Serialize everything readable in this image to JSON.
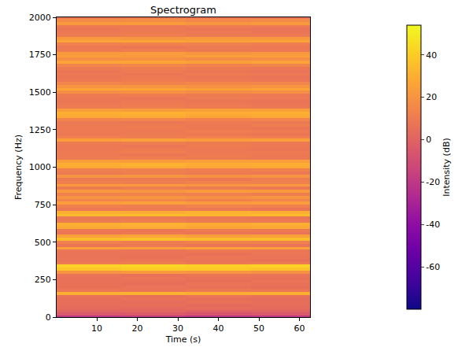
{
  "chart_data": {
    "type": "heatmap",
    "title": "Spectrogram",
    "x_label": "Time (s)",
    "y_label": "Frequency (Hz)",
    "colorbar_label": "Intensity (dB)",
    "color": "plasma",
    "xlim": [
      0.1,
      62.6
    ],
    "xticks": [
      10,
      20,
      30,
      40,
      50,
      60
    ],
    "ylim": [
      0,
      2000
    ],
    "yticks": [
      0,
      250,
      500,
      750,
      1000,
      1250,
      1500,
      1750,
      2000
    ],
    "zlim": [
      -80,
      54
    ],
    "zticks": [
      -60,
      -40,
      -20,
      0,
      20,
      40
    ],
    "x": [
      8,
      24,
      40,
      56
    ],
    "y": [
      0,
      20,
      40,
      60,
      80,
      100,
      120,
      140,
      160,
      180,
      200,
      220,
      240,
      260,
      280,
      300,
      320,
      340,
      360,
      380,
      400,
      420,
      440,
      460,
      480,
      500,
      520,
      540,
      560,
      580,
      600,
      620,
      640,
      660,
      680,
      700,
      720,
      740,
      760,
      780,
      800,
      820,
      840,
      860,
      880,
      900,
      920,
      940,
      960,
      980,
      1000,
      1020,
      1040,
      1060,
      1080,
      1100,
      1120,
      1140,
      1160,
      1180,
      1200,
      1220,
      1240,
      1260,
      1280,
      1300,
      1320,
      1340,
      1360,
      1380,
      1400,
      1420,
      1440,
      1460,
      1480,
      1500,
      1520,
      1540,
      1560,
      1580,
      1600,
      1620,
      1640,
      1660,
      1680,
      1700,
      1720,
      1740,
      1760,
      1780,
      1800,
      1820,
      1840,
      1860,
      1880,
      1900,
      1920,
      1940,
      1960,
      1980,
      2000
    ],
    "z": [
      [
        -20,
        -18,
        -21,
        -19
      ],
      [
        -5,
        -4,
        -6,
        -5
      ],
      [
        0,
        1,
        -1,
        0
      ],
      [
        3,
        2,
        4,
        3
      ],
      [
        4,
        5,
        3,
        4
      ],
      [
        5,
        4,
        6,
        5
      ],
      [
        5,
        6,
        5,
        4
      ],
      [
        6,
        5,
        7,
        6
      ],
      [
        30,
        31,
        29,
        30
      ],
      [
        8,
        7,
        9,
        8
      ],
      [
        6,
        7,
        6,
        5
      ],
      [
        6,
        5,
        7,
        6
      ],
      [
        6,
        6,
        5,
        7
      ],
      [
        6,
        7,
        6,
        6
      ],
      [
        7,
        6,
        8,
        7
      ],
      [
        20,
        22,
        21,
        19
      ],
      [
        38,
        40,
        39,
        37
      ],
      [
        42,
        43,
        41,
        42
      ],
      [
        10,
        11,
        9,
        10
      ],
      [
        7,
        8,
        7,
        6
      ],
      [
        7,
        6,
        8,
        7
      ],
      [
        7,
        7,
        6,
        8
      ],
      [
        8,
        7,
        9,
        8
      ],
      [
        25,
        24,
        26,
        25
      ],
      [
        8,
        9,
        8,
        7
      ],
      [
        12,
        11,
        13,
        12
      ],
      [
        35,
        36,
        34,
        35
      ],
      [
        25,
        26,
        24,
        25
      ],
      [
        8,
        9,
        8,
        7
      ],
      [
        9,
        8,
        10,
        9
      ],
      [
        28,
        29,
        27,
        28
      ],
      [
        30,
        31,
        29,
        30
      ],
      [
        10,
        11,
        10,
        9
      ],
      [
        9,
        10,
        9,
        8
      ],
      [
        34,
        35,
        33,
        34
      ],
      [
        30,
        29,
        31,
        30
      ],
      [
        9,
        10,
        9,
        8
      ],
      [
        12,
        11,
        13,
        12
      ],
      [
        24,
        25,
        23,
        24
      ],
      [
        14,
        15,
        13,
        14
      ],
      [
        20,
        21,
        19,
        20
      ],
      [
        12,
        13,
        12,
        11
      ],
      [
        22,
        21,
        23,
        22
      ],
      [
        10,
        11,
        10,
        9
      ],
      [
        22,
        23,
        21,
        22
      ],
      [
        12,
        11,
        13,
        12
      ],
      [
        10,
        10,
        9,
        11
      ],
      [
        20,
        21,
        19,
        20
      ],
      [
        10,
        11,
        10,
        9
      ],
      [
        12,
        12,
        11,
        13
      ],
      [
        28,
        29,
        27,
        28
      ],
      [
        30,
        31,
        29,
        30
      ],
      [
        24,
        23,
        25,
        24
      ],
      [
        10,
        11,
        10,
        9
      ],
      [
        9,
        8,
        10,
        9
      ],
      [
        10,
        11,
        9,
        10
      ],
      [
        9,
        10,
        9,
        8
      ],
      [
        9,
        8,
        10,
        9
      ],
      [
        10,
        11,
        10,
        9
      ],
      [
        24,
        25,
        23,
        24
      ],
      [
        12,
        11,
        13,
        12
      ],
      [
        9,
        10,
        9,
        8
      ],
      [
        10,
        9,
        11,
        10
      ],
      [
        9,
        10,
        9,
        8
      ],
      [
        10,
        10,
        9,
        11
      ],
      [
        9,
        8,
        10,
        9
      ],
      [
        14,
        15,
        13,
        14
      ],
      [
        28,
        29,
        27,
        28
      ],
      [
        30,
        31,
        29,
        30
      ],
      [
        24,
        23,
        25,
        24
      ],
      [
        10,
        11,
        10,
        9
      ],
      [
        9,
        10,
        9,
        8
      ],
      [
        8,
        9,
        8,
        7
      ],
      [
        9,
        8,
        10,
        9
      ],
      [
        10,
        11,
        10,
        9
      ],
      [
        18,
        19,
        17,
        18
      ],
      [
        26,
        27,
        25,
        26
      ],
      [
        20,
        21,
        19,
        20
      ],
      [
        14,
        13,
        15,
        14
      ],
      [
        9,
        10,
        9,
        8
      ],
      [
        8,
        9,
        8,
        7
      ],
      [
        9,
        8,
        10,
        9
      ],
      [
        8,
        9,
        8,
        7
      ],
      [
        10,
        11,
        10,
        9
      ],
      [
        14,
        15,
        13,
        14
      ],
      [
        26,
        27,
        25,
        26
      ],
      [
        18,
        19,
        17,
        18
      ],
      [
        24,
        23,
        25,
        24
      ],
      [
        22,
        23,
        21,
        22
      ],
      [
        10,
        11,
        10,
        9
      ],
      [
        9,
        8,
        10,
        9
      ],
      [
        12,
        13,
        12,
        11
      ],
      [
        26,
        27,
        25,
        26
      ],
      [
        22,
        21,
        23,
        22
      ],
      [
        10,
        11,
        10,
        9
      ],
      [
        9,
        10,
        9,
        8
      ],
      [
        8,
        9,
        8,
        7
      ],
      [
        10,
        9,
        11,
        10
      ],
      [
        22,
        23,
        21,
        22
      ],
      [
        16,
        17,
        15,
        16
      ],
      [
        9,
        10,
        9,
        8
      ]
    ]
  }
}
